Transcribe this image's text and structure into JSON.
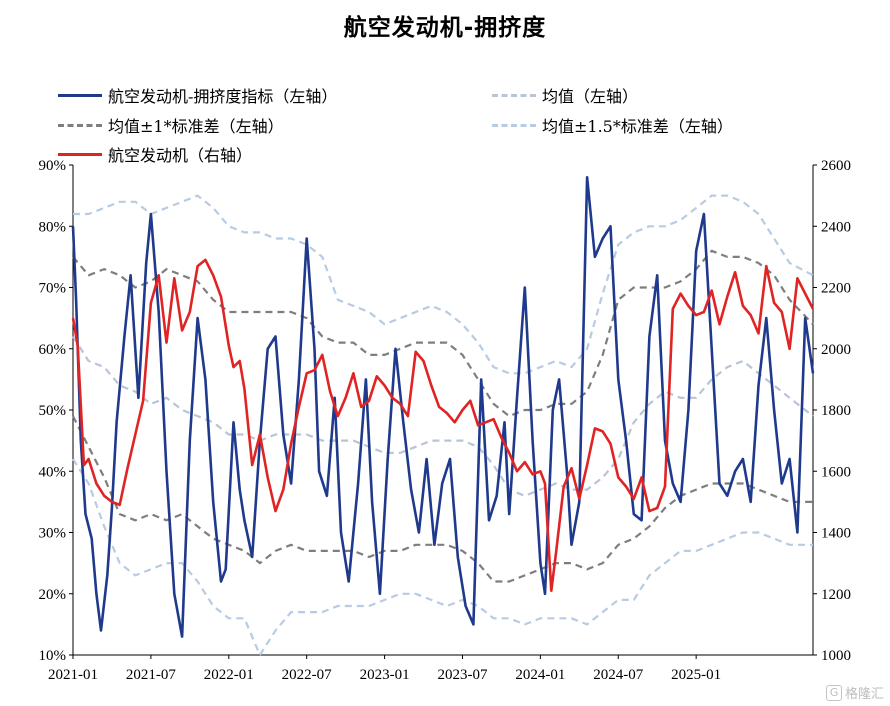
{
  "chart_data": {
    "type": "line",
    "title": "航空发动机-拥挤度",
    "xlabel": "",
    "ylabel_left": "",
    "ylabel_right": "",
    "x_tick_labels": [
      "2021-01",
      "2021-07",
      "2022-01",
      "2022-07",
      "2023-01",
      "2023-07",
      "2024-01",
      "2024-07",
      "2025-01"
    ],
    "left_axis": {
      "min": 10,
      "max": 90,
      "step": 10,
      "tick_labels": [
        "10%",
        "20%",
        "30%",
        "40%",
        "50%",
        "60%",
        "70%",
        "80%",
        "90%"
      ]
    },
    "right_axis": {
      "min": 1000,
      "max": 2600,
      "step": 200,
      "tick_labels": [
        "1000",
        "1200",
        "1400",
        "1600",
        "1800",
        "2000",
        "2200",
        "2400",
        "2600"
      ]
    },
    "x_range": [
      2021.0,
      2025.75
    ],
    "series": [
      {
        "name": "航空发动机-拥挤度指标（左轴）",
        "axis": "left",
        "color": "#1f3a8c",
        "style": "solid",
        "x": [
          2021.0,
          2021.02,
          2021.05,
          2021.08,
          2021.12,
          2021.15,
          2021.18,
          2021.22,
          2021.25,
          2021.28,
          2021.33,
          2021.37,
          2021.42,
          2021.47,
          2021.5,
          2021.55,
          2021.6,
          2021.65,
          2021.7,
          2021.75,
          2021.8,
          2021.85,
          2021.9,
          2021.95,
          2021.98,
          2022.03,
          2022.07,
          2022.1,
          2022.15,
          2022.2,
          2022.25,
          2022.3,
          2022.35,
          2022.4,
          2022.45,
          2022.5,
          2022.55,
          2022.58,
          2022.63,
          2022.68,
          2022.72,
          2022.77,
          2022.83,
          2022.88,
          2022.92,
          2022.97,
          2023.02,
          2023.07,
          2023.12,
          2023.17,
          2023.22,
          2023.27,
          2023.32,
          2023.37,
          2023.42,
          2023.47,
          2023.52,
          2023.57,
          2023.62,
          2023.67,
          2023.72,
          2023.77,
          2023.8,
          2023.85,
          2023.9,
          2023.95,
          2024.0,
          2024.03,
          2024.08,
          2024.12,
          2024.17,
          2024.2,
          2024.25,
          2024.3,
          2024.35,
          2024.4,
          2024.45,
          2024.5,
          2024.55,
          2024.6,
          2024.65,
          2024.7,
          2024.75,
          2024.8,
          2024.85,
          2024.9,
          2024.95,
          2025.0,
          2025.05,
          2025.1,
          2025.15,
          2025.2,
          2025.25,
          2025.3,
          2025.35,
          2025.4,
          2025.45,
          2025.5,
          2025.55,
          2025.6,
          2025.65,
          2025.7,
          2025.75
        ],
        "values": [
          80,
          68,
          45,
          33,
          29,
          20,
          14,
          23,
          34,
          48,
          62,
          72,
          52,
          74,
          82,
          66,
          40,
          20,
          13,
          45,
          65,
          55,
          35,
          22,
          24,
          48,
          37,
          32,
          26,
          45,
          60,
          62,
          46,
          38,
          55,
          78,
          60,
          40,
          36,
          52,
          30,
          22,
          38,
          55,
          35,
          20,
          42,
          60,
          48,
          37,
          30,
          42,
          28,
          38,
          42,
          26,
          18,
          15,
          55,
          32,
          36,
          48,
          33,
          52,
          70,
          45,
          25,
          20,
          50,
          55,
          40,
          28,
          35,
          88,
          75,
          78,
          80,
          55,
          45,
          33,
          32,
          62,
          72,
          45,
          38,
          35,
          50,
          76,
          82,
          60,
          38,
          36,
          40,
          42,
          35,
          54,
          65,
          50,
          38,
          42,
          30,
          65,
          56
        ]
      },
      {
        "name": "均值（左轴）",
        "axis": "left",
        "color": "#b9c4d6",
        "style": "dash",
        "x": [
          2021.0,
          2021.1,
          2021.2,
          2021.3,
          2021.4,
          2021.5,
          2021.6,
          2021.7,
          2021.8,
          2021.9,
          2022.0,
          2022.1,
          2022.2,
          2022.3,
          2022.4,
          2022.5,
          2022.6,
          2022.7,
          2022.8,
          2022.9,
          2023.0,
          2023.1,
          2023.2,
          2023.3,
          2023.4,
          2023.5,
          2023.6,
          2023.7,
          2023.8,
          2023.9,
          2024.0,
          2024.1,
          2024.2,
          2024.3,
          2024.4,
          2024.5,
          2024.6,
          2024.7,
          2024.8,
          2024.9,
          2025.0,
          2025.1,
          2025.2,
          2025.3,
          2025.4,
          2025.5,
          2025.6,
          2025.75
        ],
        "values": [
          62,
          58,
          57,
          54,
          53,
          51,
          52,
          50,
          49,
          48,
          46,
          46,
          45,
          46,
          46,
          46,
          45,
          45,
          45,
          44,
          43,
          43,
          44,
          45,
          45,
          45,
          44,
          41,
          37,
          36,
          37,
          38,
          37,
          37,
          39,
          42,
          48,
          51,
          53,
          52,
          52,
          55,
          57,
          58,
          56,
          54,
          52,
          49
        ]
      },
      {
        "name": "均值±1*标准差（左轴）",
        "axis": "left",
        "color": "#7e7e7e",
        "style": "dash",
        "x_upper": [
          2021.0,
          2021.1,
          2021.2,
          2021.3,
          2021.4,
          2021.5,
          2021.6,
          2021.7,
          2021.8,
          2021.9,
          2022.0,
          2022.1,
          2022.2,
          2022.3,
          2022.4,
          2022.5,
          2022.6,
          2022.7,
          2022.8,
          2022.9,
          2023.0,
          2023.1,
          2023.2,
          2023.3,
          2023.4,
          2023.5,
          2023.6,
          2023.7,
          2023.8,
          2023.9,
          2024.0,
          2024.1,
          2024.2,
          2024.3,
          2024.4,
          2024.5,
          2024.6,
          2024.7,
          2024.8,
          2024.9,
          2025.0,
          2025.1,
          2025.2,
          2025.3,
          2025.4,
          2025.5,
          2025.6,
          2025.75
        ],
        "upper": [
          75,
          72,
          73,
          72,
          70,
          71,
          73,
          72,
          71,
          68,
          66,
          66,
          66,
          66,
          66,
          65,
          62,
          61,
          61,
          59,
          59,
          60,
          61,
          61,
          61,
          59,
          55,
          51,
          49,
          50,
          50,
          51,
          51,
          53,
          59,
          68,
          70,
          70,
          70,
          71,
          73,
          76,
          75,
          75,
          74,
          72,
          68,
          64
        ],
        "lower": [
          49,
          44,
          39,
          33,
          32,
          33,
          32,
          33,
          31,
          29,
          28,
          27,
          25,
          27,
          28,
          27,
          27,
          27,
          27,
          26,
          27,
          27,
          28,
          28,
          28,
          27,
          25,
          22,
          22,
          23,
          24,
          25,
          25,
          24,
          25,
          28,
          29,
          31,
          34,
          36,
          37,
          38,
          38,
          38,
          37,
          36,
          35,
          35
        ]
      },
      {
        "name": "均值±1.5*标准差（左轴）",
        "axis": "left",
        "color": "#b8cbe4",
        "style": "dash",
        "upper": [
          82,
          82,
          83,
          84,
          84,
          82,
          83,
          84,
          85,
          83,
          80,
          79,
          79,
          78,
          78,
          77,
          75,
          68,
          67,
          66,
          64,
          65,
          66,
          67,
          66,
          64,
          61,
          57,
          56,
          56,
          57,
          58,
          57,
          60,
          69,
          77,
          79,
          80,
          80,
          81,
          83,
          85,
          85,
          84,
          82,
          78,
          74,
          72
        ],
        "lower": [
          42,
          38,
          31,
          25,
          23,
          24,
          25,
          25,
          22,
          18,
          16,
          16,
          10,
          14,
          17,
          17,
          17,
          18,
          18,
          18,
          19,
          20,
          20,
          19,
          18,
          19,
          18,
          16,
          16,
          15,
          16,
          16,
          16,
          15,
          17,
          19,
          19,
          23,
          25,
          27,
          27,
          28,
          29,
          30,
          30,
          29,
          28,
          28
        ]
      },
      {
        "name": "航空发动机（右轴）",
        "axis": "right",
        "color": "#e02424",
        "style": "solid",
        "x": [
          2021.0,
          2021.03,
          2021.07,
          2021.1,
          2021.15,
          2021.2,
          2021.25,
          2021.3,
          2021.35,
          2021.4,
          2021.45,
          2021.5,
          2021.55,
          2021.6,
          2021.65,
          2021.7,
          2021.75,
          2021.8,
          2021.85,
          2021.9,
          2021.95,
          2022.0,
          2022.03,
          2022.07,
          2022.1,
          2022.15,
          2022.2,
          2022.25,
          2022.3,
          2022.35,
          2022.4,
          2022.45,
          2022.5,
          2022.55,
          2022.6,
          2022.65,
          2022.7,
          2022.75,
          2022.8,
          2022.85,
          2022.9,
          2022.95,
          2023.0,
          2023.05,
          2023.1,
          2023.15,
          2023.2,
          2023.25,
          2023.3,
          2023.35,
          2023.4,
          2023.45,
          2023.5,
          2023.55,
          2023.6,
          2023.65,
          2023.7,
          2023.75,
          2023.8,
          2023.85,
          2023.9,
          2023.95,
          2024.0,
          2024.03,
          2024.07,
          2024.1,
          2024.15,
          2024.2,
          2024.25,
          2024.3,
          2024.35,
          2024.4,
          2024.45,
          2024.5,
          2024.55,
          2024.6,
          2024.65,
          2024.7,
          2024.75,
          2024.8,
          2024.85,
          2024.9,
          2024.95,
          2025.0,
          2025.05,
          2025.1,
          2025.15,
          2025.2,
          2025.25,
          2025.3,
          2025.35,
          2025.4,
          2025.45,
          2025.5,
          2025.55,
          2025.6,
          2025.65,
          2025.7,
          2025.75
        ],
        "values": [
          2100,
          2010,
          1620,
          1640,
          1560,
          1520,
          1500,
          1490,
          1610,
          1720,
          1830,
          2150,
          2240,
          2020,
          2230,
          2060,
          2120,
          2270,
          2290,
          2240,
          2170,
          2010,
          1940,
          1960,
          1870,
          1620,
          1720,
          1580,
          1470,
          1540,
          1690,
          1810,
          1920,
          1930,
          1980,
          1860,
          1780,
          1840,
          1920,
          1810,
          1830,
          1910,
          1880,
          1840,
          1820,
          1780,
          1990,
          1960,
          1880,
          1810,
          1790,
          1760,
          1800,
          1830,
          1750,
          1760,
          1770,
          1710,
          1660,
          1600,
          1630,
          1590,
          1600,
          1560,
          1210,
          1330,
          1550,
          1610,
          1510,
          1620,
          1740,
          1730,
          1690,
          1580,
          1550,
          1510,
          1580,
          1470,
          1480,
          1550,
          2130,
          2180,
          2140,
          2110,
          2120,
          2190,
          2080,
          2170,
          2250,
          2140,
          2110,
          2050,
          2270,
          2150,
          2120,
          2000,
          2230,
          2180,
          2130
        ]
      }
    ]
  },
  "legend": [
    {
      "label": "航空发动机-拥挤度指标（左轴）",
      "color": "#1f3a8c",
      "style": "solid"
    },
    {
      "label": "均值（左轴）",
      "color": "#b9c4d6",
      "style": "dash"
    },
    {
      "label": "均值±1*标准差（左轴）",
      "color": "#7e7e7e",
      "style": "dash"
    },
    {
      "label": "均值±1.5*标准差（左轴）",
      "color": "#b8cbe4",
      "style": "dash"
    },
    {
      "label": "航空发动机（右轴）",
      "color": "#e02424",
      "style": "solid"
    }
  ],
  "watermark": "格隆汇",
  "watermark_logo": "G"
}
